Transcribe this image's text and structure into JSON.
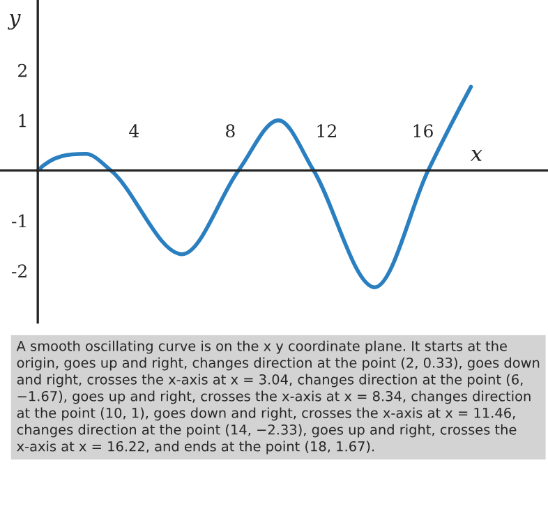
{
  "chart_data": {
    "type": "line",
    "xlabel": "x",
    "ylabel": "y",
    "x": [
      0,
      2,
      3.04,
      6,
      8.34,
      10,
      11.46,
      14,
      16.22,
      18
    ],
    "series": [
      {
        "color": "#2a7fc1",
        "values": [
          0,
          0.33,
          0,
          -1.67,
          0,
          1,
          0,
          -2.33,
          0,
          1.67
        ]
      }
    ],
    "xlim": [
      -1.57,
      21.2
    ],
    "ylim": [
      -3.03,
      3.4
    ],
    "xticks": [
      4,
      8,
      12,
      16
    ],
    "yticks": [
      -2,
      -1,
      1,
      2
    ],
    "grid": false,
    "legend": false,
    "marker": "none",
    "line_style": "solid",
    "annotations": [
      "A smooth oscillating curve is on the x y coordinate plane. It starts at the origin, goes up and right, changes direction at the point (2, 0.33), goes down and right, crosses the x-axis at x = 3.04, changes direction at the point (6, −1.67), goes up and right, crosses the x-axis at x = 8.34, changes direction at the point (10, 1), goes down and right, crosses the x-axis at x = 11.46, changes direction at the point (14, −2.33), goes up and right, crosses the x-axis at x = 16.22, and ends at the point (18, 1.67)."
    ]
  }
}
